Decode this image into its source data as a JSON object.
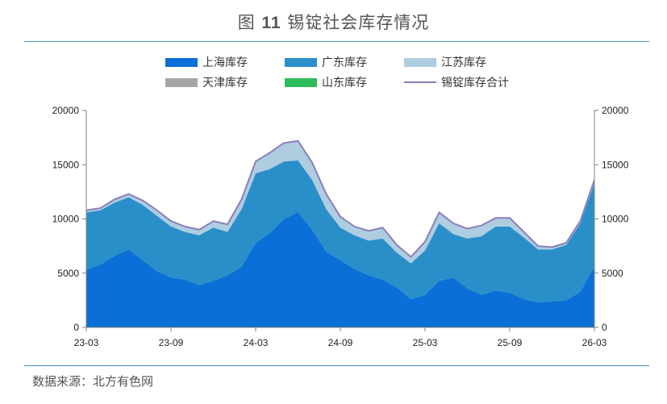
{
  "header": {
    "prefix": "图",
    "number": "11",
    "text": "锡锭社会库存情况"
  },
  "source": "数据来源：北方有色网",
  "legend": [
    {
      "label": "上海库存",
      "color": "#0a6fd6",
      "kind": "box"
    },
    {
      "label": "广东库存",
      "color": "#2a8fc9",
      "kind": "box"
    },
    {
      "label": "江苏库存",
      "color": "#aecde0",
      "kind": "box"
    },
    {
      "label": "天津库存",
      "color": "#a6a6a6",
      "kind": "box"
    },
    {
      "label": "山东库存",
      "color": "#2dbd5a",
      "kind": "box"
    },
    {
      "label": "锡锭库存合计",
      "color": "#8a7fb8",
      "kind": "line"
    }
  ],
  "chart_data": {
    "type": "area",
    "stacked": true,
    "x_ticks": [
      "23-03",
      "23-09",
      "24-03",
      "24-09",
      "25-03",
      "25-09",
      "26-03"
    ],
    "y_ticks_left": [
      "0",
      "5000",
      "10000",
      "15000",
      "20000"
    ],
    "y_ticks_right": [
      "0",
      "5000",
      "10000",
      "15000",
      "20000"
    ],
    "ylim": [
      0,
      20000
    ],
    "x": [
      "23-03",
      "23-04",
      "23-05",
      "23-06",
      "23-07",
      "23-08",
      "23-09",
      "23-10",
      "23-11",
      "23-12",
      "24-01",
      "24-02",
      "24-03",
      "24-04",
      "24-05",
      "24-06",
      "24-07",
      "24-08",
      "24-09",
      "24-10",
      "24-11",
      "24-12",
      "25-01",
      "25-02",
      "25-03",
      "25-04",
      "25-05",
      "25-06",
      "25-07",
      "25-08",
      "25-09",
      "25-10",
      "25-11",
      "25-12",
      "26-01",
      "26-02",
      "26-03"
    ],
    "series": [
      {
        "name": "上海库存",
        "color": "#0a6fd6",
        "values": [
          5300,
          5800,
          6600,
          7200,
          6200,
          5200,
          4600,
          4400,
          3900,
          4300,
          4800,
          5600,
          7800,
          8700,
          10000,
          10600,
          9000,
          7000,
          6200,
          5400,
          4800,
          4400,
          3700,
          2600,
          3000,
          4300,
          4600,
          3600,
          3000,
          3400,
          3200,
          2600,
          2300,
          2400,
          2500,
          3300,
          5600
        ]
      },
      {
        "name": "广东库存",
        "color": "#2a8fc9",
        "values": [
          5300,
          5000,
          4900,
          4800,
          5100,
          5100,
          4700,
          4400,
          4600,
          4900,
          4000,
          5300,
          6400,
          5900,
          5300,
          4800,
          4600,
          3900,
          3000,
          3100,
          3200,
          3800,
          3200,
          3300,
          4100,
          5300,
          4000,
          4600,
          5400,
          5900,
          6100,
          5700,
          4900,
          4800,
          5100,
          6300,
          7700
        ]
      },
      {
        "name": "江苏库存",
        "color": "#aecde0",
        "values": [
          200,
          200,
          300,
          300,
          400,
          500,
          500,
          500,
          500,
          600,
          700,
          900,
          1100,
          1500,
          1700,
          1800,
          1600,
          1400,
          1000,
          800,
          900,
          1000,
          700,
          600,
          800,
          1000,
          1000,
          900,
          1000,
          800,
          800,
          500,
          300,
          200,
          200,
          200,
          300
        ]
      },
      {
        "name": "天津库存",
        "color": "#a6a6a6",
        "values": [
          0,
          0,
          0,
          0,
          0,
          0,
          0,
          0,
          0,
          0,
          0,
          0,
          0,
          0,
          0,
          0,
          0,
          0,
          0,
          0,
          0,
          0,
          0,
          0,
          0,
          0,
          0,
          0,
          0,
          0,
          0,
          0,
          0,
          0,
          0,
          0,
          0
        ]
      },
      {
        "name": "山东库存",
        "color": "#2dbd5a",
        "values": [
          0,
          0,
          0,
          0,
          0,
          0,
          0,
          0,
          0,
          0,
          0,
          0,
          0,
          0,
          0,
          0,
          0,
          0,
          0,
          0,
          0,
          0,
          0,
          0,
          0,
          0,
          0,
          0,
          0,
          0,
          0,
          0,
          0,
          0,
          0,
          0,
          0
        ]
      },
      {
        "name": "锡锭库存合计",
        "color": "#8a7fb8",
        "type": "line",
        "values": [
          10800,
          11000,
          11800,
          12300,
          11700,
          10800,
          9800,
          9300,
          9000,
          9800,
          9500,
          11800,
          15300,
          16100,
          17000,
          17200,
          15200,
          12300,
          10200,
          9300,
          8900,
          9200,
          7600,
          6500,
          7900,
          10600,
          9600,
          9100,
          9400,
          10100,
          10100,
          8800,
          7500,
          7400,
          7800,
          9800,
          13600
        ]
      }
    ]
  }
}
